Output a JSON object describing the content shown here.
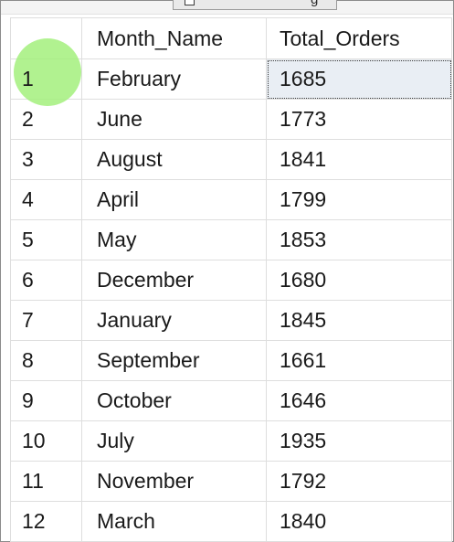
{
  "columns": {
    "month": "Month_Name",
    "orders": "Total_Orders"
  },
  "rows": [
    {
      "num": "1",
      "month": "February",
      "orders": "1685"
    },
    {
      "num": "2",
      "month": "June",
      "orders": "1773"
    },
    {
      "num": "3",
      "month": "August",
      "orders": "1841"
    },
    {
      "num": "4",
      "month": "April",
      "orders": "1799"
    },
    {
      "num": "5",
      "month": "May",
      "orders": "1853"
    },
    {
      "num": "6",
      "month": "December",
      "orders": "1680"
    },
    {
      "num": "7",
      "month": "January",
      "orders": "1845"
    },
    {
      "num": "8",
      "month": "September",
      "orders": "1661"
    },
    {
      "num": "9",
      "month": "October",
      "orders": "1646"
    },
    {
      "num": "10",
      "month": "July",
      "orders": "1935"
    },
    {
      "num": "11",
      "month": "November",
      "orders": "1792"
    },
    {
      "num": "12",
      "month": "March",
      "orders": "1840"
    }
  ],
  "selected_row": 0,
  "colors": {
    "cursor_highlight": "#a3f07c",
    "selected_cell": "#e9eef4",
    "grid_line": "#dedede"
  },
  "icons": {
    "top_tab_icon": "document-icon"
  }
}
